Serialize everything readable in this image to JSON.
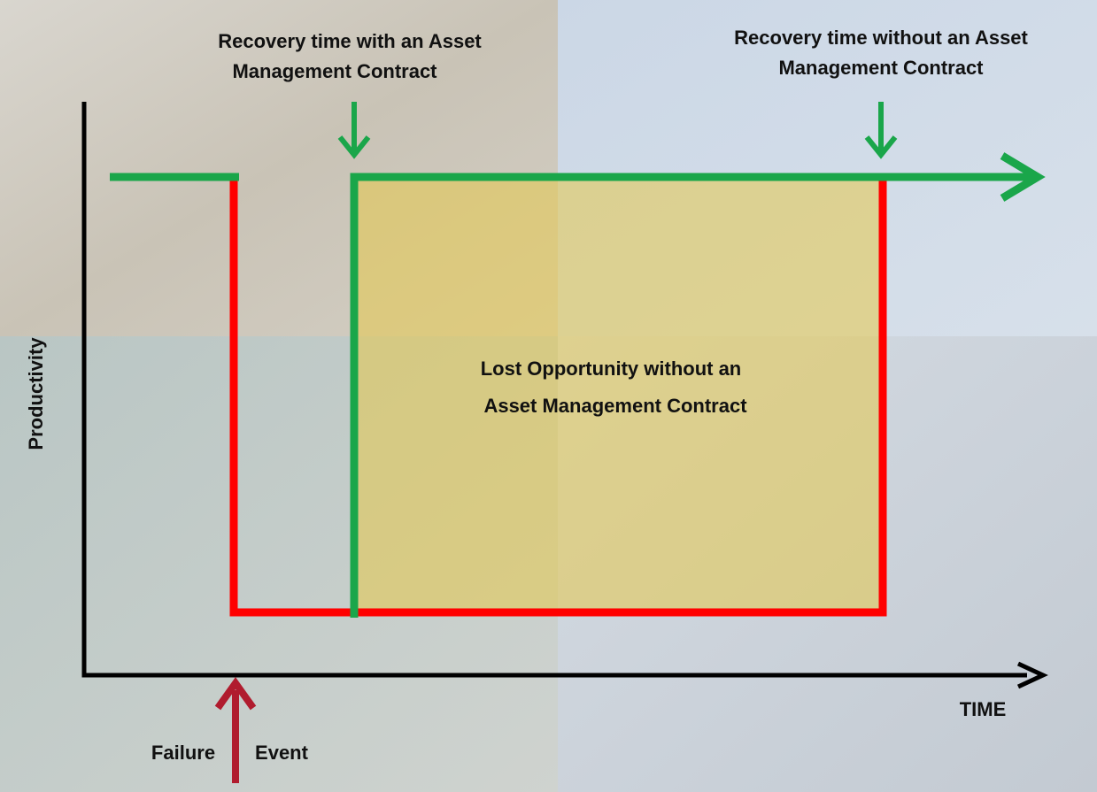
{
  "recovery_with": {
    "lines": [
      "Recovery time with an Asset",
      "Management Contract"
    ]
  },
  "recovery_without": {
    "lines": [
      "Recovery time without an Asset",
      "Management Contract"
    ]
  },
  "y_axis_label": "Productivity",
  "x_axis_label": "TIME",
  "lost_opportunity": {
    "lines": [
      "Lost Opportunity without an",
      "Asset Management Contract"
    ]
  },
  "failure_event": {
    "words": [
      "Failure",
      "Event"
    ]
  }
}
